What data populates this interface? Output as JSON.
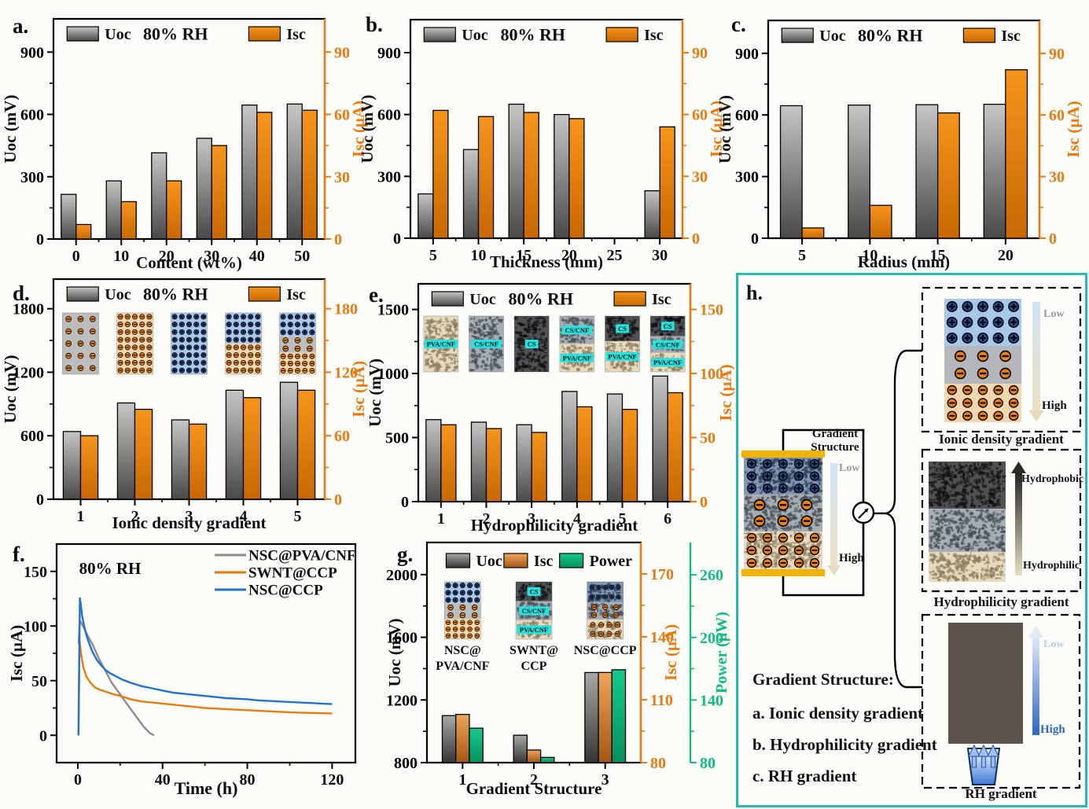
{
  "colors": {
    "uoc_grad": [
      "#c6c6c6",
      "#494949"
    ],
    "uoc_grad_dark": [
      "#a8a8a8",
      "#353535"
    ],
    "isc_grad": [
      "#f6951c",
      "#c76802"
    ],
    "isc_grad_brown": [
      "#eda55c",
      "#a35714"
    ],
    "power_grad": [
      "#17c98a",
      "#06915b"
    ],
    "orange_axis": "#e87a10",
    "green_axis": "#0fbe7c",
    "teal_border": "#2bb8b1",
    "cyan_chip": "#25e2de",
    "electrode_yellow": "#f0b400",
    "line_gray": "#8c8c8c",
    "line_orange": "#e87a10",
    "line_blue": "#2272ce"
  },
  "chart_data": [
    {
      "id": "a",
      "type": "bar",
      "panel_label": "a.",
      "annotation": "80% RH",
      "xlabel": "Content (wt%)",
      "left_axis": {
        "label": "Uoc (mV)",
        "ticks": [
          0,
          300,
          600,
          900
        ],
        "range": [
          0,
          1060
        ]
      },
      "right_axis": {
        "label": "Isc (µA)",
        "ticks": [
          0,
          30,
          60,
          90
        ],
        "range": [
          0,
          106
        ]
      },
      "categories": [
        "0",
        "10",
        "20",
        "30",
        "40",
        "50"
      ],
      "series": [
        {
          "name": "Uoc",
          "axis": "left",
          "grad": "uoc_grad",
          "values": [
            215,
            280,
            415,
            485,
            645,
            650
          ]
        },
        {
          "name": "Isc",
          "axis": "right",
          "grad": "isc_grad",
          "values": [
            7,
            18,
            28,
            45,
            61,
            62
          ]
        }
      ]
    },
    {
      "id": "b",
      "type": "bar",
      "panel_label": "b.",
      "annotation": "80% RH",
      "xlabel": "Thickness (mm)",
      "left_axis": {
        "label": "Uoc (mV)",
        "ticks": [
          0,
          300,
          600,
          900
        ],
        "range": [
          0,
          1060
        ]
      },
      "right_axis": {
        "label": "Isc (µA)",
        "ticks": [
          0,
          30,
          60,
          90
        ],
        "range": [
          0,
          106
        ]
      },
      "categories": [
        "5",
        "10",
        "15",
        "20",
        "25",
        "30"
      ],
      "series": [
        {
          "name": "Uoc",
          "axis": "left",
          "grad": "uoc_grad",
          "values": [
            215,
            430,
            650,
            600,
            null,
            230
          ]
        },
        {
          "name": "Isc",
          "axis": "right",
          "grad": "isc_grad",
          "values": [
            62,
            59,
            61,
            58,
            null,
            54
          ]
        }
      ]
    },
    {
      "id": "c",
      "type": "bar",
      "panel_label": "c.",
      "annotation": "80% RH",
      "xlabel": "Radius (mm)",
      "left_axis": {
        "label": "Uoc (mV)",
        "ticks": [
          0,
          300,
          600,
          900
        ],
        "range": [
          0,
          1060
        ]
      },
      "right_axis": {
        "label": "Isc (µA)",
        "ticks": [
          0,
          30,
          60,
          90
        ],
        "range": [
          0,
          106
        ]
      },
      "categories": [
        "5",
        "10",
        "15",
        "20"
      ],
      "series": [
        {
          "name": "Uoc",
          "axis": "left",
          "grad": "uoc_grad",
          "values": [
            645,
            648,
            650,
            652
          ]
        },
        {
          "name": "Isc",
          "axis": "right",
          "grad": "isc_grad",
          "values": [
            5,
            16,
            61,
            82
          ]
        }
      ]
    },
    {
      "id": "d",
      "type": "bar",
      "panel_label": "d.",
      "annotation": "80% RH",
      "xlabel": "Ionic density gradient",
      "left_axis": {
        "label": "Uoc (mV)",
        "ticks": [
          0,
          600,
          1200,
          1800
        ],
        "range": [
          0,
          2080
        ]
      },
      "right_axis": {
        "label": "Isc (µA)",
        "ticks": [
          0,
          60,
          120,
          180
        ],
        "range": [
          0,
          208
        ]
      },
      "categories": [
        "1",
        "2",
        "3",
        "4",
        "5"
      ],
      "series": [
        {
          "name": "Uoc",
          "axis": "left",
          "grad": "uoc_grad",
          "values": [
            640,
            910,
            750,
            1030,
            1105
          ]
        },
        {
          "name": "Isc",
          "axis": "right",
          "grad": "isc_grad",
          "values": [
            60,
            85,
            71,
            96,
            103
          ]
        }
      ],
      "insets": [
        {
          "bands": [
            {
              "type": "dots",
              "bg": "#bdbdbd",
              "dot": "#ee8013",
              "sign": "-",
              "rows": 5,
              "cols": 3
            }
          ]
        },
        {
          "bands": [
            {
              "type": "dots",
              "bg": "#f3d6ad",
              "dot": "#ee8013",
              "sign": "-",
              "rows": 8,
              "cols": 5
            }
          ]
        },
        {
          "bands": [
            {
              "type": "dots",
              "bg": "#a9c7e9",
              "dot": "#2a4b8f",
              "sign": "+",
              "rows": 8,
              "cols": 5
            }
          ]
        },
        {
          "bands": [
            {
              "type": "dots",
              "bg": "#a9c7e9",
              "dot": "#2a4b8f",
              "sign": "+",
              "rows": 4,
              "cols": 5
            },
            {
              "type": "dots",
              "bg": "#f3d6ad",
              "dot": "#ee8013",
              "sign": "-",
              "rows": 4,
              "cols": 5
            }
          ]
        },
        {
          "hfrac": [
            0.38,
            0.27,
            0.35
          ],
          "bands": [
            {
              "type": "dots",
              "bg": "#a9c7e9",
              "dot": "#2a4b8f",
              "sign": "+",
              "rows": 3,
              "cols": 5
            },
            {
              "type": "dots",
              "bg": "#bdbdbd",
              "dot": "#ee8013",
              "sign": "-",
              "rows": 2,
              "cols": 3
            },
            {
              "type": "dots",
              "bg": "#f3d6ad",
              "dot": "#ee8013",
              "sign": "-",
              "rows": 3,
              "cols": 5
            }
          ]
        }
      ]
    },
    {
      "id": "e",
      "type": "bar",
      "panel_label": "e.",
      "annotation": "80% RH",
      "xlabel": "Hydrophilicity gradient",
      "left_axis": {
        "label": "Uoc (mV)",
        "ticks": [
          0,
          500,
          1000,
          1500
        ],
        "range": [
          0,
          1700
        ]
      },
      "right_axis": {
        "label": "Isc (µA)",
        "ticks": [
          0,
          50,
          100,
          150
        ],
        "range": [
          0,
          170
        ]
      },
      "categories": [
        "1",
        "2",
        "3",
        "4",
        "5",
        "6"
      ],
      "series": [
        {
          "name": "Uoc",
          "axis": "left",
          "grad": "uoc_grad",
          "values": [
            640,
            620,
            600,
            860,
            840,
            980
          ]
        },
        {
          "name": "Isc",
          "axis": "right",
          "grad": "isc_grad",
          "values": [
            60,
            57,
            54,
            74,
            72,
            85
          ]
        }
      ],
      "insets": [
        {
          "bands": [
            {
              "type": "sponge",
              "tex": "beige",
              "label": "PVA/CNF"
            }
          ]
        },
        {
          "bands": [
            {
              "type": "sponge",
              "tex": "gray",
              "label": "CS/CNF"
            }
          ]
        },
        {
          "bands": [
            {
              "type": "sponge",
              "tex": "dark",
              "label": "CS"
            }
          ]
        },
        {
          "bands": [
            {
              "type": "sponge",
              "tex": "gray",
              "label": "CS/CNF"
            },
            {
              "type": "sponge",
              "tex": "beige",
              "label": "PVA/CNF"
            }
          ]
        },
        {
          "hfrac": [
            0.45,
            0.55
          ],
          "bands": [
            {
              "type": "sponge",
              "tex": "dark",
              "label": "CS"
            },
            {
              "type": "sponge",
              "tex": "beige",
              "label": "PVA/CNF"
            }
          ]
        },
        {
          "hfrac": [
            0.36,
            0.3,
            0.34
          ],
          "bands": [
            {
              "type": "sponge",
              "tex": "dark",
              "label": "CS"
            },
            {
              "type": "sponge",
              "tex": "gray",
              "label": "CS/CNF"
            },
            {
              "type": "sponge",
              "tex": "beige",
              "label": "PVA/CNF"
            }
          ]
        }
      ]
    },
    {
      "id": "f",
      "type": "line",
      "panel_label": "f.",
      "annotation": "80% RH",
      "xlabel": "Time (h)",
      "ylabel": "Isc (µA)",
      "x_ticks": [
        0,
        40,
        80,
        120
      ],
      "y_ticks": [
        0,
        50,
        100,
        150
      ],
      "x_range": [
        -10,
        131
      ],
      "y_range": [
        -25,
        175
      ],
      "series": [
        {
          "name": "NSC@PVA/CNF",
          "color": "#8c8c8c",
          "points": [
            [
              0.4,
              84
            ],
            [
              1,
              105
            ],
            [
              3,
              98
            ],
            [
              5,
              90
            ],
            [
              7,
              83
            ],
            [
              10,
              70
            ],
            [
              13,
              59
            ],
            [
              16,
              48
            ],
            [
              19,
              40
            ],
            [
              22,
              32
            ],
            [
              25,
              24
            ],
            [
              28,
              16
            ],
            [
              31,
              8
            ],
            [
              34,
              2
            ],
            [
              36,
              0
            ]
          ]
        },
        {
          "name": "SWNT@CCP",
          "color": "#e87a10",
          "points": [
            [
              0.3,
              0
            ],
            [
              0.8,
              87
            ],
            [
              1.5,
              75
            ],
            [
              2.5,
              63
            ],
            [
              4,
              54
            ],
            [
              6,
              48
            ],
            [
              8,
              44
            ],
            [
              10,
              42
            ],
            [
              13,
              40
            ],
            [
              16,
              38
            ],
            [
              20,
              36
            ],
            [
              25,
              33
            ],
            [
              30,
              31
            ],
            [
              35,
              30
            ],
            [
              40,
              29
            ],
            [
              50,
              27
            ],
            [
              60,
              25
            ],
            [
              70,
              24
            ],
            [
              80,
              23
            ],
            [
              90,
              22
            ],
            [
              100,
              21
            ],
            [
              110,
              20.5
            ],
            [
              120,
              20
            ]
          ]
        },
        {
          "name": "NSC@CCP",
          "color": "#2272ce",
          "points": [
            [
              0.3,
              0
            ],
            [
              1,
              126
            ],
            [
              1.5,
              118
            ],
            [
              2,
              110
            ],
            [
              3,
              100
            ],
            [
              4,
              92
            ],
            [
              5,
              86
            ],
            [
              7,
              76
            ],
            [
              9,
              69
            ],
            [
              11,
              64
            ],
            [
              13,
              60
            ],
            [
              15,
              57
            ],
            [
              18,
              54
            ],
            [
              21,
              51
            ],
            [
              25,
              48
            ],
            [
              30,
              45
            ],
            [
              35,
              43
            ],
            [
              40,
              41
            ],
            [
              45,
              39
            ],
            [
              50,
              38
            ],
            [
              55,
              37
            ],
            [
              60,
              36
            ],
            [
              65,
              35
            ],
            [
              70,
              34
            ],
            [
              80,
              33
            ],
            [
              85,
              32
            ],
            [
              95,
              31
            ],
            [
              100,
              30.5
            ],
            [
              105,
              30
            ],
            [
              110,
              29.5
            ],
            [
              115,
              29
            ],
            [
              120,
              28.5
            ]
          ]
        }
      ]
    },
    {
      "id": "g",
      "type": "bar",
      "panel_label": "g.",
      "annotation": "",
      "xlabel": "Gradient Structure",
      "left_axis": {
        "label": "Uoc (mV)",
        "ticks": [
          800,
          1200,
          1600,
          2000
        ],
        "range": [
          800,
          2205
        ]
      },
      "right_axis": {
        "label": "Isc (µA)",
        "ticks": [
          80,
          110,
          140,
          170
        ],
        "range": [
          80,
          185
        ]
      },
      "right_axis2": {
        "label": "Power (µW)",
        "ticks": [
          80,
          140,
          200,
          260
        ],
        "range": [
          80,
          291
        ]
      },
      "categories": [
        "1",
        "2",
        "3"
      ],
      "series": [
        {
          "name": "Uoc",
          "axis": "left",
          "grad": "uoc_grad_dark",
          "values": [
            1100,
            975,
            1375
          ]
        },
        {
          "name": "Isc",
          "axis": "right",
          "grad": "isc_grad_brown",
          "values": [
            103,
            86,
            123
          ]
        },
        {
          "name": "Power",
          "axis": "right2",
          "grad": "power_grad",
          "values": [
            113,
            85,
            169
          ]
        }
      ],
      "insets": [
        {
          "caption": [
            "NSC@",
            "PVA/CNF"
          ],
          "hfrac": [
            0.38,
            0.27,
            0.35
          ],
          "bands": [
            {
              "type": "dots",
              "bg": "#a9c7e9",
              "dot": "#2a4b8f",
              "sign": "+",
              "rows": 3,
              "cols": 5
            },
            {
              "type": "dots",
              "bg": "#bdbdbd",
              "dot": "#ee8013",
              "sign": "-",
              "rows": 2,
              "cols": 3
            },
            {
              "type": "dots",
              "bg": "#f3d6ad",
              "dot": "#ee8013",
              "sign": "-",
              "rows": 3,
              "cols": 5
            }
          ]
        },
        {
          "caption": [
            "SWNT@",
            "CCP"
          ],
          "hfrac": [
            0.34,
            0.33,
            0.33
          ],
          "bands": [
            {
              "type": "sponge",
              "tex": "dark",
              "label": "CS"
            },
            {
              "type": "sponge",
              "tex": "gray",
              "label": "CS/CNF"
            },
            {
              "type": "sponge",
              "tex": "beige",
              "label": "PVA/CNF"
            }
          ]
        },
        {
          "caption": [
            "NSC@CCP"
          ],
          "hfrac": [
            0.36,
            0.3,
            0.34
          ],
          "bands": [
            {
              "type": "sponge",
              "tex": "bluegray",
              "dots": {
                "dot": "#2a4b8f",
                "sign": "+",
                "rows": 2,
                "cols": 5
              }
            },
            {
              "type": "sponge",
              "tex": "gray",
              "dots": {
                "dot": "#ee8013",
                "sign": "-",
                "rows": 2,
                "cols": 3
              }
            },
            {
              "type": "sponge",
              "tex": "beige",
              "dots": {
                "dot": "#ee8013",
                "sign": "-",
                "rows": 2,
                "cols": 4
              }
            }
          ]
        }
      ]
    }
  ],
  "panel_h": {
    "label": "h.",
    "device": {
      "gradient_label": "Gradient Structure",
      "low": "Low",
      "high": "High"
    },
    "ionic": {
      "caption": "Ionic density gradient",
      "low": "Low",
      "high": "High"
    },
    "hydro": {
      "caption": "Hydrophilicity gradient",
      "top": "Hydrophobic",
      "bottom": "Hydrophilic"
    },
    "rh": {
      "caption": "RH gradient",
      "low": "Low",
      "high": "High"
    },
    "list_title": "Gradient Structure:",
    "list": [
      "a. Ionic density gradient",
      "b. Hydrophilicity gradient",
      "c. RH gradient"
    ]
  }
}
